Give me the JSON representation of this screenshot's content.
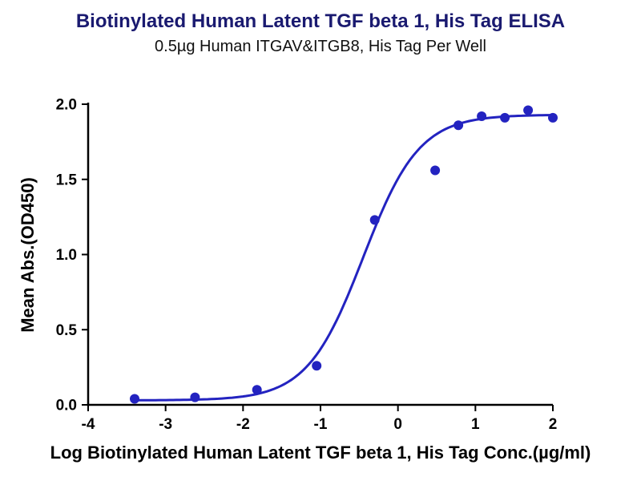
{
  "title": "Biotinylated Human Latent TGF beta 1, His Tag ELISA",
  "subtitle": "0.5µg Human ITGAV&ITGB8, His Tag Per Well",
  "x_axis_label": "Log Biotinylated Human Latent TGF beta 1, His Tag Conc.(µg/ml)",
  "y_axis_label": "Mean Abs.(OD450)",
  "chart_data": {
    "type": "scatter",
    "title": "Biotinylated Human Latent TGF beta 1, His Tag ELISA",
    "subtitle": "0.5µg Human ITGAV&ITGB8, His Tag Per Well",
    "xlabel": "Log Biotinylated Human Latent TGF beta 1, His Tag Conc.(µg/ml)",
    "ylabel": "Mean Abs.(OD450)",
    "xlim": [
      -4,
      2
    ],
    "ylim": [
      0,
      2.0
    ],
    "x_ticks": [
      -4,
      -3,
      -2,
      -1,
      0,
      1,
      2
    ],
    "x_tick_labels": [
      "-4",
      "-3",
      "-2",
      "-1",
      "0",
      "1",
      "2"
    ],
    "y_ticks": [
      0,
      0.5,
      1.0,
      1.5,
      2.0
    ],
    "y_tick_labels": [
      "0.0",
      "0.5",
      "1.0",
      "1.5",
      "2.0"
    ],
    "grid": false,
    "legend": "none",
    "axis_color": "#000000",
    "marker_color": "#2323c0",
    "line_color": "#2323c0",
    "series": [
      {
        "name": "Biotinylated Human Latent TGF beta 1, His Tag",
        "x": [
          -3.4,
          -2.62,
          -1.82,
          -1.05,
          -0.3,
          0.48,
          0.78,
          1.08,
          1.38,
          1.68,
          2.0
        ],
        "y": [
          0.04,
          0.05,
          0.1,
          0.26,
          1.23,
          1.56,
          1.86,
          1.92,
          1.91,
          1.96,
          1.91
        ]
      }
    ],
    "fit_curve": {
      "model": "4PL",
      "bottom": 0.03,
      "top": 1.93,
      "logEC50": -0.45,
      "hill": 1.2,
      "x_start": -3.4,
      "x_end": 2.0
    }
  }
}
